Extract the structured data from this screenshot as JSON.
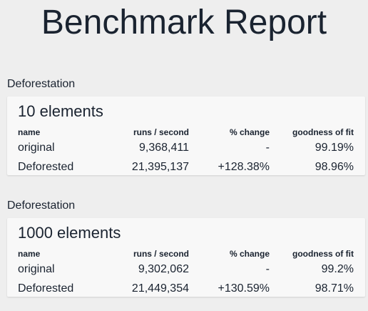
{
  "page": {
    "title": "Benchmark Report"
  },
  "columns": {
    "name": "name",
    "runs": "runs / second",
    "change": "% change",
    "fit": "goodness of fit"
  },
  "sections": [
    {
      "title": "Deforestation",
      "card_title": "10 elements",
      "rows": [
        {
          "name": "original",
          "runs": "9,368,411",
          "change": "-",
          "fit": "99.19%"
        },
        {
          "name": "Deforested",
          "runs": "21,395,137",
          "change": "+128.38%",
          "fit": "98.96%"
        }
      ]
    },
    {
      "title": "Deforestation",
      "card_title": "1000 elements",
      "rows": [
        {
          "name": "original",
          "runs": "9,302,062",
          "change": "-",
          "fit": "99.2%"
        },
        {
          "name": "Deforested",
          "runs": "21,449,354",
          "change": "+130.59%",
          "fit": "98.71%"
        }
      ]
    }
  ]
}
